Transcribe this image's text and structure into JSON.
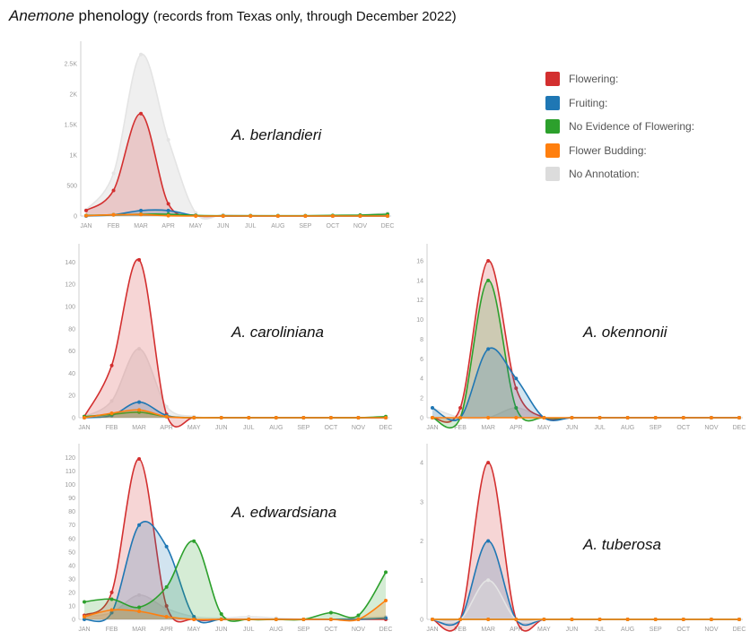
{
  "title": {
    "genus": "Anemone",
    "main": "phenology",
    "subtitle": "(records from Texas only, through December 2022)"
  },
  "legend": [
    {
      "label": "Flowering:",
      "color": "#d32f2f"
    },
    {
      "label": "Fruiting:",
      "color": "#1f77b4"
    },
    {
      "label": "No Evidence of Flowering:",
      "color": "#2ca02c"
    },
    {
      "label": "Flower Budding:",
      "color": "#ff7f0e"
    },
    {
      "label": "No Annotation:",
      "color": "#dcdcdc"
    }
  ],
  "chart_data": [
    {
      "type": "area",
      "title": "A. berlandieri",
      "categories": [
        "JAN",
        "FEB",
        "MAR",
        "APR",
        "MAY",
        "JUN",
        "JUL",
        "AUG",
        "SEP",
        "OCT",
        "NOV",
        "DEC"
      ],
      "ylim": [
        0,
        2750
      ],
      "yticks": [
        0,
        500,
        1000,
        1500,
        2000,
        2500
      ],
      "ytick_labels": [
        "0",
        "500",
        "1K",
        "1.5K",
        "2K",
        "2.5K"
      ],
      "series": [
        {
          "name": "No Annotation",
          "color": "#dcdcdc",
          "values": [
            100,
            700,
            2650,
            1250,
            50,
            20,
            10,
            5,
            5,
            10,
            20,
            50
          ]
        },
        {
          "name": "Flowering",
          "color": "#d32f2f",
          "values": [
            90,
            420,
            1680,
            200,
            10,
            0,
            0,
            0,
            0,
            0,
            0,
            0
          ]
        },
        {
          "name": "Fruiting",
          "color": "#1f77b4",
          "values": [
            0,
            20,
            90,
            90,
            5,
            0,
            0,
            0,
            0,
            0,
            0,
            0
          ]
        },
        {
          "name": "No Evidence of Flowering",
          "color": "#2ca02c",
          "values": [
            10,
            20,
            30,
            30,
            10,
            5,
            5,
            5,
            5,
            10,
            15,
            30
          ]
        },
        {
          "name": "Flower Budding",
          "color": "#ff7f0e",
          "values": [
            5,
            20,
            25,
            5,
            0,
            0,
            0,
            0,
            0,
            0,
            0,
            0
          ]
        }
      ]
    },
    {
      "type": "area",
      "title": "A. caroliniana",
      "categories": [
        "JAN",
        "FEB",
        "MAR",
        "APR",
        "MAY",
        "JUN",
        "JUL",
        "AUG",
        "SEP",
        "OCT",
        "NOV",
        "DEC"
      ],
      "ylim": [
        0,
        150
      ],
      "yticks": [
        0,
        20,
        40,
        60,
        80,
        100,
        120,
        140
      ],
      "ytick_labels": [
        "0",
        "20",
        "40",
        "60",
        "80",
        "100",
        "120",
        "140"
      ],
      "series": [
        {
          "name": "No Annotation",
          "color": "#dcdcdc",
          "values": [
            1,
            15,
            62,
            10,
            1,
            0,
            0,
            0,
            0,
            0,
            0,
            0
          ]
        },
        {
          "name": "Flowering",
          "color": "#d32f2f",
          "values": [
            1,
            47,
            142,
            3,
            0,
            0,
            0,
            0,
            0,
            0,
            0,
            0
          ]
        },
        {
          "name": "Fruiting",
          "color": "#1f77b4",
          "values": [
            0,
            2,
            14,
            2,
            0,
            0,
            0,
            0,
            0,
            0,
            0,
            0
          ]
        },
        {
          "name": "No Evidence of Flowering",
          "color": "#2ca02c",
          "values": [
            1,
            3,
            5,
            1,
            0,
            0,
            0,
            0,
            0,
            0,
            0,
            1
          ]
        },
        {
          "name": "Flower Budding",
          "color": "#ff7f0e",
          "values": [
            0,
            4,
            7,
            1,
            0,
            0,
            0,
            0,
            0,
            0,
            0,
            0
          ]
        }
      ]
    },
    {
      "type": "area",
      "title": "A. okennonii",
      "categories": [
        "JAN",
        "FEB",
        "MAR",
        "APR",
        "MAY",
        "JUN",
        "JUL",
        "AUG",
        "SEP",
        "OCT",
        "NOV",
        "DEC"
      ],
      "ylim": [
        0,
        17
      ],
      "yticks": [
        0,
        2,
        4,
        6,
        8,
        10,
        12,
        14,
        16
      ],
      "ytick_labels": [
        "0",
        "2",
        "4",
        "6",
        "8",
        "10",
        "12",
        "14",
        "16"
      ],
      "series": [
        {
          "name": "No Annotation",
          "color": "#dcdcdc",
          "values": [
            1,
            0,
            0,
            1,
            0,
            0,
            0,
            0,
            0,
            0,
            0,
            0
          ]
        },
        {
          "name": "Flowering",
          "color": "#d32f2f",
          "values": [
            0,
            1,
            16,
            3,
            0,
            0,
            0,
            0,
            0,
            0,
            0,
            0
          ]
        },
        {
          "name": "No Evidence of Flowering",
          "color": "#2ca02c",
          "values": [
            0,
            0,
            14,
            1,
            0,
            0,
            0,
            0,
            0,
            0,
            0,
            0
          ]
        },
        {
          "name": "Fruiting",
          "color": "#1f77b4",
          "values": [
            1,
            0,
            7,
            4,
            0,
            0,
            0,
            0,
            0,
            0,
            0,
            0
          ]
        },
        {
          "name": "Flower Budding",
          "color": "#ff7f0e",
          "values": [
            0,
            0,
            0,
            0,
            0,
            0,
            0,
            0,
            0,
            0,
            0,
            0
          ]
        }
      ]
    },
    {
      "type": "area",
      "title": "A. edwardsiana",
      "categories": [
        "JAN",
        "FEB",
        "MAR",
        "APR",
        "MAY",
        "JUN",
        "JUL",
        "AUG",
        "SEP",
        "OCT",
        "NOV",
        "DEC"
      ],
      "ylim": [
        0,
        125
      ],
      "yticks": [
        0,
        10,
        20,
        30,
        40,
        50,
        60,
        70,
        80,
        90,
        100,
        110,
        120
      ],
      "ytick_labels": [
        "0",
        "10",
        "20",
        "30",
        "40",
        "50",
        "60",
        "70",
        "80",
        "90",
        "100",
        "110",
        "120"
      ],
      "series": [
        {
          "name": "No Annotation",
          "color": "#dcdcdc",
          "values": [
            2,
            5,
            18,
            8,
            2,
            1,
            2,
            1,
            0,
            0,
            1,
            2
          ]
        },
        {
          "name": "Flowering",
          "color": "#d32f2f",
          "values": [
            3,
            20,
            119,
            10,
            0,
            0,
            0,
            0,
            0,
            0,
            0,
            0
          ]
        },
        {
          "name": "Fruiting",
          "color": "#1f77b4",
          "values": [
            0,
            5,
            70,
            54,
            2,
            0,
            0,
            0,
            0,
            0,
            0,
            1
          ]
        },
        {
          "name": "No Evidence of Flowering",
          "color": "#2ca02c",
          "values": [
            13,
            15,
            9,
            24,
            58,
            4,
            0,
            0,
            0,
            5,
            3,
            35
          ]
        },
        {
          "name": "Flower Budding",
          "color": "#ff7f0e",
          "values": [
            2,
            7,
            6,
            2,
            0,
            0,
            0,
            0,
            0,
            0,
            0,
            14
          ]
        }
      ]
    },
    {
      "type": "area",
      "title": "A. tuberosa",
      "categories": [
        "JAN",
        "FEB",
        "MAR",
        "APR",
        "MAY",
        "JUN",
        "JUL",
        "AUG",
        "SEP",
        "OCT",
        "NOV",
        "DEC"
      ],
      "ylim": [
        0,
        4.3
      ],
      "yticks": [
        0,
        1,
        2,
        3,
        4
      ],
      "ytick_labels": [
        "0",
        "1",
        "2",
        "3",
        "4"
      ],
      "series": [
        {
          "name": "Flowering",
          "color": "#d32f2f",
          "values": [
            0,
            0,
            4,
            0,
            0,
            0,
            0,
            0,
            0,
            0,
            0,
            0
          ]
        },
        {
          "name": "Fruiting",
          "color": "#1f77b4",
          "values": [
            0,
            0,
            2,
            0,
            0,
            0,
            0,
            0,
            0,
            0,
            0,
            0
          ]
        },
        {
          "name": "No Annotation",
          "color": "#dcdcdc",
          "values": [
            0,
            0,
            1,
            0,
            0,
            0,
            0,
            0,
            0,
            0,
            0,
            0
          ]
        },
        {
          "name": "No Evidence of Flowering",
          "color": "#2ca02c",
          "values": [
            0,
            0,
            0,
            0,
            0,
            0,
            0,
            0,
            0,
            0,
            0,
            0
          ]
        },
        {
          "name": "Flower Budding",
          "color": "#ff7f0e",
          "values": [
            0,
            0,
            0,
            0,
            0,
            0,
            0,
            0,
            0,
            0,
            0,
            0
          ]
        }
      ]
    }
  ]
}
